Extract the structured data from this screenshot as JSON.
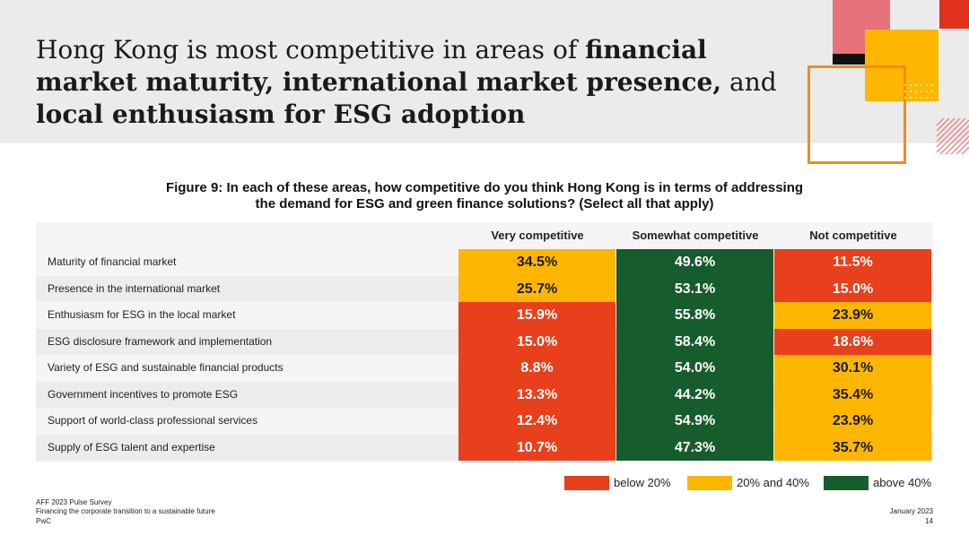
{
  "title": {
    "segments": [
      {
        "text": "Hong Kong is most competitive in areas of ",
        "bold": false
      },
      {
        "text": "financial market maturity, international market presence,",
        "bold": true
      },
      {
        "text": " and ",
        "bold": false
      },
      {
        "text": "local enthusiasm for ESG adoption",
        "bold": true
      }
    ]
  },
  "figure_caption_line1": "Figure 9: In each of these areas, how competitive do you think Hong Kong is in terms of addressing",
  "figure_caption_line2": "the demand for ESG and green finance solutions? (Select all that apply)",
  "colors": {
    "below_20": "#e8401c",
    "between_20_40": "#ffb600",
    "above_40": "#175c2c",
    "header_bg": "#ebebeb",
    "accent_pink": "#e8727a",
    "accent_orange": "#ef8c1e",
    "accent_red": "#e0301e"
  },
  "chart_data": {
    "type": "table",
    "title": "Figure 9: In each of these areas, how competitive do you think Hong Kong is in terms of addressing the demand for ESG and green finance solutions? (Select all that apply)",
    "columns": [
      "Very competitive",
      "Somewhat competitive",
      "Not competitive"
    ],
    "rows": [
      {
        "label": "Maturity of financial market",
        "values": [
          "34.5%",
          "49.6%",
          "11.5%"
        ]
      },
      {
        "label": "Presence in the international market",
        "values": [
          "25.7%",
          "53.1%",
          "15.0%"
        ]
      },
      {
        "label": "Enthusiasm for ESG in the local market",
        "values": [
          "15.9%",
          "55.8%",
          "23.9%"
        ]
      },
      {
        "label": "ESG disclosure framework and implementation",
        "values": [
          "15.0%",
          "58.4%",
          "18.6%"
        ]
      },
      {
        "label": "Variety of ESG and sustainable financial products",
        "values": [
          "8.8%",
          "54.0%",
          "30.1%"
        ]
      },
      {
        "label": "Government incentives to promote ESG",
        "values": [
          "13.3%",
          "44.2%",
          "35.4%"
        ]
      },
      {
        "label": "Support of world-class professional services",
        "values": [
          "12.4%",
          "54.9%",
          "23.9%"
        ]
      },
      {
        "label": "Supply of ESG talent and expertise",
        "values": [
          "10.7%",
          "47.3%",
          "35.7%"
        ]
      }
    ],
    "legend": [
      {
        "label": "below 20%",
        "color": "#e8401c"
      },
      {
        "label": "20% and 40%",
        "color": "#ffb600"
      },
      {
        "label": "above 40%",
        "color": "#175c2c"
      }
    ]
  },
  "footer": {
    "line1": "AFF 2023 Pulse Survey",
    "line2": "Financing the corporate transition to a sustainable future",
    "line3": "PwC",
    "date": "January 2023",
    "page": "14"
  }
}
